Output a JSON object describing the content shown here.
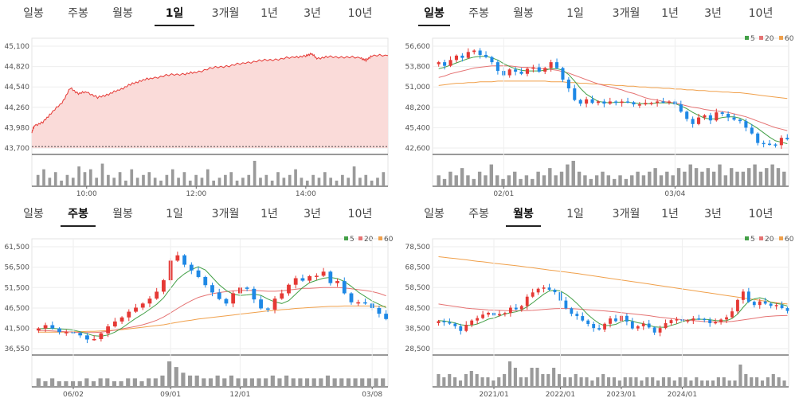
{
  "tabs": [
    "일봉",
    "주봉",
    "월봉",
    "1일",
    "3개월",
    "1년",
    "3년",
    "10년"
  ],
  "colors": {
    "up": "#e53935",
    "down": "#1e88e5",
    "ma5": "#43a047",
    "ma20": "#e57373",
    "ma60": "#f0a04b",
    "area_line": "#e53935",
    "area_fill": "#fadbd9",
    "volume": "#9a9a9a",
    "grid": "#eeeeee"
  },
  "legend": [
    "5",
    "20",
    "60"
  ],
  "chart_data": [
    {
      "type": "area",
      "active_tab": "1일",
      "ylim": [
        43700,
        45100
      ],
      "y_ticks": [
        "45,100",
        "44,820",
        "44,540",
        "44,260",
        "43,980",
        "43,700"
      ],
      "x_ticks": [
        "10:00",
        "12:00",
        "14:00"
      ],
      "x_tick_positions": [
        10,
        12,
        14
      ],
      "xlim": [
        9.0,
        15.5
      ],
      "keypoints": [
        [
          9.0,
          43920
        ],
        [
          9.05,
          44010
        ],
        [
          9.2,
          44050
        ],
        [
          9.35,
          44180
        ],
        [
          9.55,
          44320
        ],
        [
          9.7,
          44520
        ],
        [
          9.85,
          44450
        ],
        [
          10.0,
          44470
        ],
        [
          10.2,
          44390
        ],
        [
          10.4,
          44440
        ],
        [
          10.6,
          44500
        ],
        [
          10.8,
          44570
        ],
        [
          11.0,
          44630
        ],
        [
          11.2,
          44660
        ],
        [
          11.5,
          44700
        ],
        [
          11.8,
          44720
        ],
        [
          12.0,
          44740
        ],
        [
          12.3,
          44800
        ],
        [
          12.6,
          44830
        ],
        [
          12.9,
          44870
        ],
        [
          13.2,
          44900
        ],
        [
          13.5,
          44920
        ],
        [
          13.8,
          44950
        ],
        [
          14.0,
          44960
        ],
        [
          14.1,
          45000
        ],
        [
          14.2,
          44930
        ],
        [
          14.4,
          44950
        ],
        [
          14.7,
          44950
        ],
        [
          15.0,
          44940
        ],
        [
          15.1,
          44900
        ],
        [
          15.2,
          44970
        ],
        [
          15.5,
          44970
        ]
      ],
      "reference": 43720,
      "volume": [
        4,
        6,
        3,
        5,
        2,
        4,
        3,
        7,
        5,
        6,
        3,
        8,
        4,
        3,
        5,
        2,
        6,
        3,
        4,
        5,
        3,
        2,
        4,
        6,
        3,
        5,
        2,
        4,
        3,
        6,
        2,
        3,
        4,
        5,
        2,
        3,
        4,
        9,
        3,
        4,
        2,
        5,
        3,
        4,
        6,
        3,
        2,
        4,
        3,
        5,
        3,
        2,
        4,
        3,
        7,
        3,
        4,
        2,
        3,
        5
      ]
    },
    {
      "type": "candlestick",
      "active_tab": "일봉",
      "ylim": [
        42600,
        56600
      ],
      "y_ticks": [
        "56,600",
        "53,800",
        "51,000",
        "48,200",
        "45,400",
        "42,600"
      ],
      "x_ticks": [
        "02/01",
        "03/04"
      ],
      "close": [
        54400,
        53900,
        54700,
        55300,
        55000,
        55800,
        56000,
        55400,
        55100,
        54400,
        53200,
        52600,
        53400,
        53100,
        52800,
        53500,
        53700,
        53100,
        53600,
        54400,
        53600,
        52000,
        50800,
        49200,
        48700,
        49300,
        48800,
        49000,
        48700,
        49000,
        48800,
        49000,
        48900,
        48600,
        48600,
        48800,
        48800,
        49000,
        48900,
        49000,
        48600,
        47600,
        46600,
        45900,
        46800,
        47100,
        46400,
        47500,
        47300,
        46800,
        46500,
        46300,
        45400,
        44600,
        43300,
        43200,
        43100,
        43000,
        44000,
        43800
      ],
      "ma5": [
        53500,
        53700,
        54000,
        54300,
        54600,
        54900,
        55100,
        55200,
        55200,
        55000,
        54700,
        54200,
        53800,
        53500,
        53300,
        53200,
        53200,
        53200,
        53300,
        53500,
        53500,
        53300,
        52700,
        51800,
        50800,
        50000,
        49500,
        49000,
        48900,
        48800,
        48900,
        48900,
        48900,
        48800,
        48700,
        48700,
        48700,
        48800,
        48800,
        48800,
        48700,
        48400,
        48000,
        47500,
        47100,
        46700,
        46600,
        46600,
        46800,
        46900,
        46900,
        46700,
        46300,
        45800,
        45300,
        44700,
        44100,
        43600,
        43400,
        43200
      ],
      "ma20": [
        52300,
        52500,
        52800,
        53000,
        53200,
        53400,
        53600,
        53700,
        53800,
        53900,
        53900,
        53900,
        53900,
        53800,
        53700,
        53700,
        53600,
        53500,
        53500,
        53400,
        53300,
        53100,
        52900,
        52600,
        52300,
        52000,
        51700,
        51400,
        51200,
        51000,
        50800,
        50600,
        50300,
        50100,
        49800,
        49500,
        49300,
        49200,
        49000,
        48900,
        48800,
        48600,
        48400,
        48200,
        48100,
        47900,
        47800,
        47700,
        47600,
        47500,
        47300,
        47100,
        46900,
        46600,
        46300,
        46000,
        45700,
        45400,
        45200,
        45000
      ],
      "ma60": [
        51200,
        51300,
        51400,
        51500,
        51500,
        51600,
        51600,
        51700,
        51700,
        51700,
        51800,
        51800,
        51800,
        51800,
        51800,
        51800,
        51800,
        51800,
        51800,
        51700,
        51700,
        51700,
        51600,
        51600,
        51500,
        51500,
        51400,
        51400,
        51300,
        51300,
        51200,
        51200,
        51100,
        51100,
        51000,
        51000,
        50900,
        50900,
        50800,
        50800,
        50700,
        50700,
        50600,
        50600,
        50500,
        50500,
        50400,
        50400,
        50300,
        50300,
        50200,
        50200,
        50100,
        50000,
        49900,
        49800,
        49700,
        49600,
        49500,
        49400
      ],
      "volume": [
        3,
        2,
        4,
        3,
        5,
        3,
        2,
        4,
        3,
        6,
        3,
        2,
        3,
        4,
        2,
        3,
        2,
        4,
        3,
        5,
        3,
        4,
        6,
        7,
        4,
        3,
        2,
        3,
        4,
        3,
        2,
        3,
        2,
        3,
        4,
        3,
        4,
        5,
        3,
        4,
        3,
        5,
        4,
        6,
        5,
        4,
        5,
        4,
        6,
        3,
        5,
        4,
        4,
        5,
        6,
        4,
        5,
        6,
        5,
        4
      ]
    },
    {
      "type": "candlestick",
      "active_tab": "주봉",
      "ylim": [
        36550,
        61500
      ],
      "y_ticks": [
        "61,500",
        "56,500",
        "51,500",
        "46,500",
        "41,500",
        "36,550"
      ],
      "x_ticks": [
        "06/02",
        "09/01",
        "12/01",
        "03/08"
      ],
      "close": [
        41500,
        42300,
        41500,
        40600,
        40600,
        40400,
        39800,
        38800,
        38900,
        40300,
        42000,
        43200,
        44200,
        45600,
        46600,
        47600,
        48800,
        50500,
        53300,
        58100,
        59400,
        57100,
        55700,
        54100,
        52100,
        50300,
        48700,
        47600,
        50100,
        51500,
        51200,
        48600,
        46400,
        46100,
        48800,
        50100,
        52200,
        53800,
        53200,
        54300,
        54400,
        55400,
        52600,
        53100,
        50100,
        47900,
        47900,
        47600,
        46500,
        45100,
        43800
      ],
      "ma5": [
        41400,
        41500,
        41500,
        41400,
        41300,
        41100,
        40700,
        40200,
        39700,
        39600,
        39900,
        40600,
        41600,
        42800,
        44000,
        45000,
        46200,
        47400,
        49000,
        51300,
        53500,
        54900,
        55900,
        56600,
        55800,
        54000,
        52200,
        50800,
        49900,
        49600,
        49700,
        49900,
        49600,
        48700,
        48000,
        47600,
        48300,
        49900,
        51500,
        52700,
        53300,
        53800,
        54000,
        53700,
        53000,
        51800,
        50400,
        49300,
        48200,
        47400,
        46600
      ],
      "ma20": [
        41000,
        41000,
        40900,
        40800,
        40700,
        40600,
        40500,
        40500,
        40500,
        40600,
        40800,
        41100,
        41400,
        41700,
        42000,
        42400,
        42900,
        43500,
        44300,
        45300,
        46400,
        47400,
        48300,
        49100,
        49600,
        50000,
        50300,
        50500,
        50700,
        50800,
        50800,
        50800,
        50700,
        50600,
        50600,
        50700,
        50900,
        51100,
        51300,
        51300,
        51400,
        51500,
        51500,
        51500,
        51400,
        51200,
        51000,
        50800,
        50500,
        50100,
        49500
      ],
      "ma60": [
        40600,
        40600,
        40600,
        40600,
        40600,
        40700,
        40700,
        40800,
        40800,
        40900,
        41000,
        41100,
        41200,
        41400,
        41600,
        41800,
        42000,
        42200,
        42400,
        42700,
        43000,
        43300,
        43500,
        43800,
        44000,
        44200,
        44400,
        44600,
        44800,
        45000,
        45200,
        45400,
        45600,
        45800,
        45900,
        46100,
        46200,
        46400,
        46500,
        46600,
        46700,
        46800,
        46900,
        46900,
        47000,
        47000,
        47000,
        47000,
        47000,
        46900,
        46900
      ],
      "volume": [
        3,
        2,
        3,
        2,
        2,
        2,
        2,
        3,
        2,
        3,
        3,
        2,
        2,
        3,
        3,
        2,
        3,
        3,
        4,
        9,
        7,
        5,
        4,
        4,
        3,
        3,
        4,
        3,
        4,
        3,
        3,
        3,
        3,
        3,
        4,
        3,
        4,
        3,
        3,
        3,
        3,
        3,
        4,
        3,
        3,
        3,
        3,
        3,
        3,
        3,
        3
      ]
    },
    {
      "type": "candlestick",
      "active_tab": "월봉",
      "ylim": [
        28500,
        78500
      ],
      "y_ticks": [
        "78,500",
        "68,500",
        "58,500",
        "48,500",
        "38,500",
        "28,500"
      ],
      "x_ticks": [
        "2021/01",
        "2022/01",
        "2023/01",
        "2024/01"
      ],
      "close": [
        42000,
        41500,
        40800,
        39500,
        37200,
        40200,
        42300,
        43500,
        45200,
        46100,
        44800,
        45500,
        46000,
        48600,
        47800,
        49400,
        54000,
        56100,
        57900,
        58500,
        57400,
        56200,
        52100,
        48300,
        45600,
        44500,
        42300,
        40600,
        38600,
        37900,
        40700,
        43300,
        42000,
        44600,
        41800,
        38400,
        39500,
        40800,
        38900,
        36400,
        38600,
        41000,
        42500,
        42900,
        42100,
        42400,
        43300,
        43100,
        42600,
        41000,
        41500,
        42800,
        43900,
        46800,
        52400,
        56500,
        51500,
        49900,
        51700,
        50600,
        49500,
        49900,
        48400,
        47000
      ],
      "ma5": [
        42300,
        42100,
        41700,
        41100,
        40200,
        39900,
        40000,
        40600,
        41700,
        43000,
        43500,
        44600,
        45500,
        46100,
        46600,
        47500,
        49100,
        51000,
        53100,
        55200,
        56800,
        57200,
        56800,
        55200,
        53100,
        50700,
        47900,
        45100,
        42800,
        40900,
        39700,
        40000,
        40400,
        41700,
        42600,
        42000,
        41200,
        40800,
        39900,
        39200,
        39000,
        39000,
        39900,
        40700,
        41700,
        42500,
        42900,
        42900,
        42900,
        42700,
        42300,
        42200,
        42200,
        43300,
        45400,
        48800,
        51800,
        52900,
        53500,
        52700,
        51200,
        50700,
        50200,
        49400
      ],
      "ma20": [
        50400,
        50000,
        49600,
        49200,
        48800,
        48400,
        48100,
        47900,
        47700,
        47500,
        47400,
        47300,
        47200,
        47100,
        47100,
        47100,
        47200,
        47300,
        47500,
        47700,
        47900,
        48100,
        48200,
        48200,
        48100,
        48000,
        47800,
        47600,
        47400,
        47200,
        47000,
        46800,
        46500,
        46200,
        45900,
        45600,
        45300,
        45000,
        44700,
        44300,
        43900,
        43600,
        43300,
        43000,
        42700,
        42400,
        42200,
        42000,
        41800,
        41700,
        41600,
        41600,
        41700,
        41900,
        42200,
        42600,
        43000,
        43400,
        43800,
        44200,
        44400,
        44600,
        44700,
        44800
      ],
      "ma60": [
        73600,
        73300,
        73000,
        72700,
        72400,
        72100,
        71700,
        71400,
        71100,
        70800,
        70400,
        70100,
        69800,
        69500,
        69200,
        68900,
        68500,
        68200,
        67800,
        67500,
        67100,
        66800,
        66400,
        66100,
        65700,
        65400,
        65000,
        64600,
        64200,
        63800,
        63400,
        63000,
        62600,
        62200,
        61800,
        61400,
        61000,
        60600,
        60200,
        59800,
        59400,
        59000,
        58600,
        58200,
        57800,
        57400,
        57000,
        56600,
        56200,
        55800,
        55400,
        55000,
        54600,
        54200,
        53800,
        53400,
        53000,
        52600,
        52200,
        51800,
        51400,
        51000,
        50700,
        50400
      ],
      "volume": [
        4,
        3,
        4,
        3,
        2,
        4,
        5,
        4,
        3,
        3,
        2,
        3,
        4,
        8,
        6,
        3,
        3,
        6,
        6,
        4,
        4,
        6,
        4,
        3,
        3,
        4,
        3,
        3,
        2,
        3,
        4,
        3,
        3,
        2,
        3,
        3,
        3,
        2,
        3,
        3,
        2,
        3,
        3,
        2,
        3,
        3,
        2,
        3,
        2,
        2,
        2,
        3,
        3,
        2,
        2,
        7,
        4,
        3,
        3,
        2,
        3,
        4,
        3,
        2
      ]
    }
  ]
}
